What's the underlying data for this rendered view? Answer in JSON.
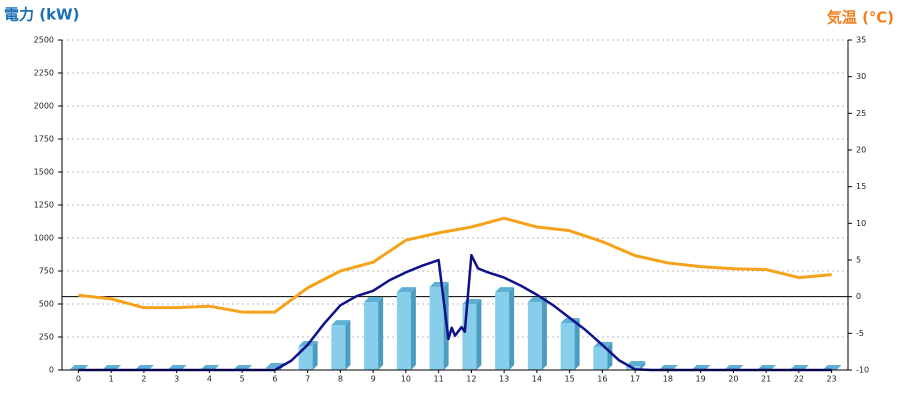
{
  "chart_data": {
    "type": "combo",
    "ylabel": "電力 (kW)",
    "y2label": "気温 (℃)",
    "categories": [
      "0",
      "1",
      "2",
      "3",
      "4",
      "5",
      "6",
      "7",
      "8",
      "9",
      "10",
      "11",
      "12",
      "13",
      "14",
      "15",
      "16",
      "17",
      "18",
      "19",
      "20",
      "21",
      "22",
      "23"
    ],
    "ylim": [
      0,
      2500
    ],
    "yticks": [
      0,
      250,
      500,
      750,
      1000,
      1250,
      1500,
      1750,
      2000,
      2250,
      2500
    ],
    "y2lim": [
      -10,
      35
    ],
    "y2ticks": [
      -10,
      -5,
      0,
      5,
      10,
      15,
      20,
      25,
      30,
      35
    ],
    "grid": true,
    "y2_zero_line": true,
    "series": [
      {
        "type": "bar3d",
        "color": "#87ceeb",
        "values": [
          0,
          0,
          0,
          0,
          0,
          0,
          15,
          182,
          340,
          515,
          590,
          630,
          500,
          590,
          515,
          356,
          175,
          30,
          0,
          0,
          0,
          0,
          0,
          0
        ]
      },
      {
        "type": "line",
        "axis": "y2",
        "color": "#f5a31a",
        "values": [
          0.2,
          -0.3,
          -1.5,
          -1.5,
          -1.3,
          -2.1,
          -2.1,
          1.2,
          3.5,
          4.7,
          7.7,
          8.7,
          9.5,
          10.7,
          9.5,
          9,
          7.5,
          5.6,
          4.6,
          4.1,
          3.8,
          3.7,
          2.6,
          3.0
        ]
      },
      {
        "type": "line",
        "color": "#10108a",
        "x": [
          0,
          1,
          2,
          3,
          4,
          5,
          6,
          6.5,
          7,
          7.5,
          8,
          8.5,
          9,
          9.5,
          10,
          10.5,
          11,
          11.3,
          11.4,
          11.5,
          11.7,
          11.8,
          12,
          12.2,
          12.5,
          13,
          13.5,
          14,
          14.5,
          15,
          15.5,
          16,
          16.5,
          17,
          17.5,
          18,
          19,
          20,
          21,
          22,
          23
        ],
        "values": [
          0,
          0,
          0,
          0,
          0,
          0,
          0,
          70,
          190,
          350,
          490,
          560,
          600,
          680,
          740,
          790,
          833,
          235,
          320,
          260,
          325,
          290,
          870,
          770,
          740,
          700,
          640,
          570,
          490,
          395,
          300,
          190,
          75,
          5,
          0,
          0,
          0,
          0,
          0,
          0,
          0
        ]
      }
    ]
  }
}
